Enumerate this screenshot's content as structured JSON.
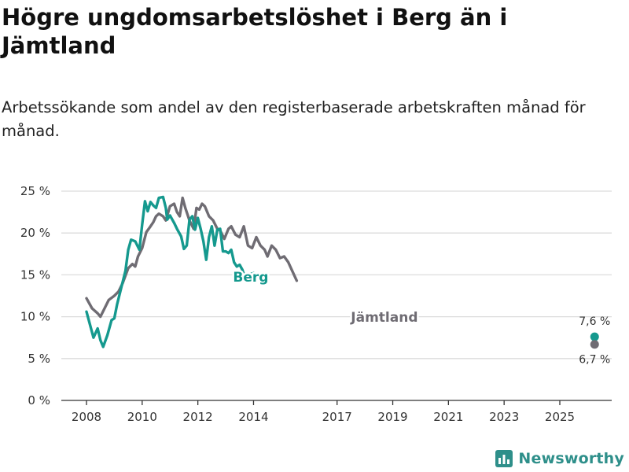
{
  "title": "Högre ungdomsarbetslöshet i Berg än i Jämtland",
  "subtitle": "Arbetssökande som andel av den registerbaserade arbetskraften månad för månad.",
  "brand": "Newsworthy",
  "colors": {
    "berg": "#15998e",
    "jamtland": "#6f6c73",
    "grid": "#dcdcdc",
    "brand": "#2e8f8a"
  },
  "chart_data": {
    "type": "line",
    "title": "Högre ungdomsarbetslöshet i Berg än i Jämtland",
    "xlabel": "",
    "ylabel": "",
    "unit": "%",
    "xlim": [
      2008.0,
      2026.25
    ],
    "ylim": [
      0,
      25
    ],
    "x_ticks": [
      {
        "value": 2008,
        "label": "2008"
      },
      {
        "value": 2010,
        "label": "2010"
      },
      {
        "value": 2012,
        "label": "2012"
      },
      {
        "value": 2014,
        "label": "2014"
      },
      {
        "value": 2017,
        "label": "2017"
      },
      {
        "value": 2019,
        "label": "2019"
      },
      {
        "value": 2021,
        "label": "2021"
      },
      {
        "value": 2023,
        "label": "2023"
      },
      {
        "value": 2025,
        "label": "2025"
      }
    ],
    "y_ticks": [
      {
        "value": 0,
        "label": "0 %"
      },
      {
        "value": 5,
        "label": "5 %"
      },
      {
        "value": 10,
        "label": "10 %"
      },
      {
        "value": 15,
        "label": "15 %"
      },
      {
        "value": 20,
        "label": "20 %"
      },
      {
        "value": 25,
        "label": "25 %"
      }
    ],
    "series": [
      {
        "name": "Berg",
        "label": "Berg",
        "label_at": [
          2013.9,
          14.2
        ],
        "end_label": "7,6 %",
        "end_value": 7.6,
        "points": [
          [
            2008.0,
            10.6
          ],
          [
            2008.25,
            7.5
          ],
          [
            2008.4,
            8.6
          ],
          [
            2008.5,
            7.2
          ],
          [
            2008.6,
            6.4
          ],
          [
            2008.75,
            7.8
          ],
          [
            2008.9,
            9.6
          ],
          [
            2009.0,
            9.8
          ],
          [
            2009.1,
            11.5
          ],
          [
            2009.25,
            13.5
          ],
          [
            2009.4,
            15.5
          ],
          [
            2009.5,
            18.0
          ],
          [
            2009.6,
            19.2
          ],
          [
            2009.75,
            19.0
          ],
          [
            2009.9,
            18.0
          ],
          [
            2010.0,
            21.0
          ],
          [
            2010.1,
            23.8
          ],
          [
            2010.2,
            22.6
          ],
          [
            2010.3,
            23.7
          ],
          [
            2010.4,
            23.3
          ],
          [
            2010.5,
            23.0
          ],
          [
            2010.6,
            24.2
          ],
          [
            2010.75,
            24.3
          ],
          [
            2010.85,
            23.0
          ],
          [
            2010.9,
            21.6
          ],
          [
            2011.0,
            22.1
          ],
          [
            2011.15,
            21.2
          ],
          [
            2011.25,
            20.5
          ],
          [
            2011.4,
            19.6
          ],
          [
            2011.5,
            18.1
          ],
          [
            2011.6,
            18.5
          ],
          [
            2011.7,
            21.6
          ],
          [
            2011.8,
            22.0
          ],
          [
            2011.9,
            20.4
          ],
          [
            2012.0,
            21.8
          ],
          [
            2012.1,
            20.5
          ],
          [
            2012.2,
            19.0
          ],
          [
            2012.3,
            16.8
          ],
          [
            2012.4,
            19.5
          ],
          [
            2012.5,
            20.8
          ],
          [
            2012.6,
            18.5
          ],
          [
            2012.7,
            20.4
          ],
          [
            2012.8,
            20.5
          ],
          [
            2012.9,
            17.8
          ],
          [
            2013.0,
            17.8
          ],
          [
            2013.1,
            17.6
          ],
          [
            2013.2,
            18.0
          ],
          [
            2013.3,
            16.5
          ],
          [
            2013.4,
            16.0
          ],
          [
            2013.5,
            16.2
          ],
          [
            2013.6,
            15.6
          ],
          [
            2013.7,
            14.6
          ],
          [
            2013.8,
            15.0
          ],
          [
            2014.0,
            15.2
          ]
        ]
      },
      {
        "name": "Jämtland",
        "label": "Jämtland",
        "label_at": [
          2018.7,
          9.4
        ],
        "end_label": "6,7 %",
        "end_value": 6.7,
        "points": [
          [
            2008.0,
            12.2
          ],
          [
            2008.2,
            11.0
          ],
          [
            2008.4,
            10.4
          ],
          [
            2008.5,
            10.0
          ],
          [
            2008.65,
            11.0
          ],
          [
            2008.8,
            12.0
          ],
          [
            2009.0,
            12.5
          ],
          [
            2009.15,
            13.0
          ],
          [
            2009.3,
            14.0
          ],
          [
            2009.5,
            15.8
          ],
          [
            2009.65,
            16.3
          ],
          [
            2009.75,
            16.0
          ],
          [
            2009.85,
            17.2
          ],
          [
            2010.0,
            18.2
          ],
          [
            2010.15,
            20.1
          ],
          [
            2010.3,
            20.8
          ],
          [
            2010.4,
            21.3
          ],
          [
            2010.5,
            22.0
          ],
          [
            2010.6,
            22.3
          ],
          [
            2010.75,
            22.0
          ],
          [
            2010.85,
            21.5
          ],
          [
            2011.0,
            23.2
          ],
          [
            2011.15,
            23.5
          ],
          [
            2011.25,
            22.5
          ],
          [
            2011.35,
            22.0
          ],
          [
            2011.45,
            24.2
          ],
          [
            2011.55,
            23.0
          ],
          [
            2011.7,
            21.5
          ],
          [
            2011.85,
            20.5
          ],
          [
            2011.95,
            23.0
          ],
          [
            2012.05,
            22.8
          ],
          [
            2012.15,
            23.5
          ],
          [
            2012.25,
            23.2
          ],
          [
            2012.4,
            22.0
          ],
          [
            2012.55,
            21.5
          ],
          [
            2012.7,
            20.5
          ],
          [
            2012.8,
            20.3
          ],
          [
            2012.95,
            19.3
          ],
          [
            2013.1,
            20.5
          ],
          [
            2013.2,
            20.8
          ],
          [
            2013.35,
            19.8
          ],
          [
            2013.5,
            19.5
          ],
          [
            2013.65,
            20.8
          ],
          [
            2013.8,
            18.5
          ],
          [
            2013.95,
            18.2
          ],
          [
            2014.1,
            19.5
          ],
          [
            2014.25,
            18.5
          ],
          [
            2014.4,
            18.0
          ],
          [
            2014.5,
            17.2
          ],
          [
            2014.65,
            18.5
          ],
          [
            2014.8,
            18.0
          ],
          [
            2014.95,
            17.0
          ],
          [
            2015.1,
            17.2
          ],
          [
            2015.25,
            16.5
          ],
          [
            2015.4,
            15.4
          ],
          [
            2015.55,
            14.3
          ]
        ]
      }
    ]
  }
}
